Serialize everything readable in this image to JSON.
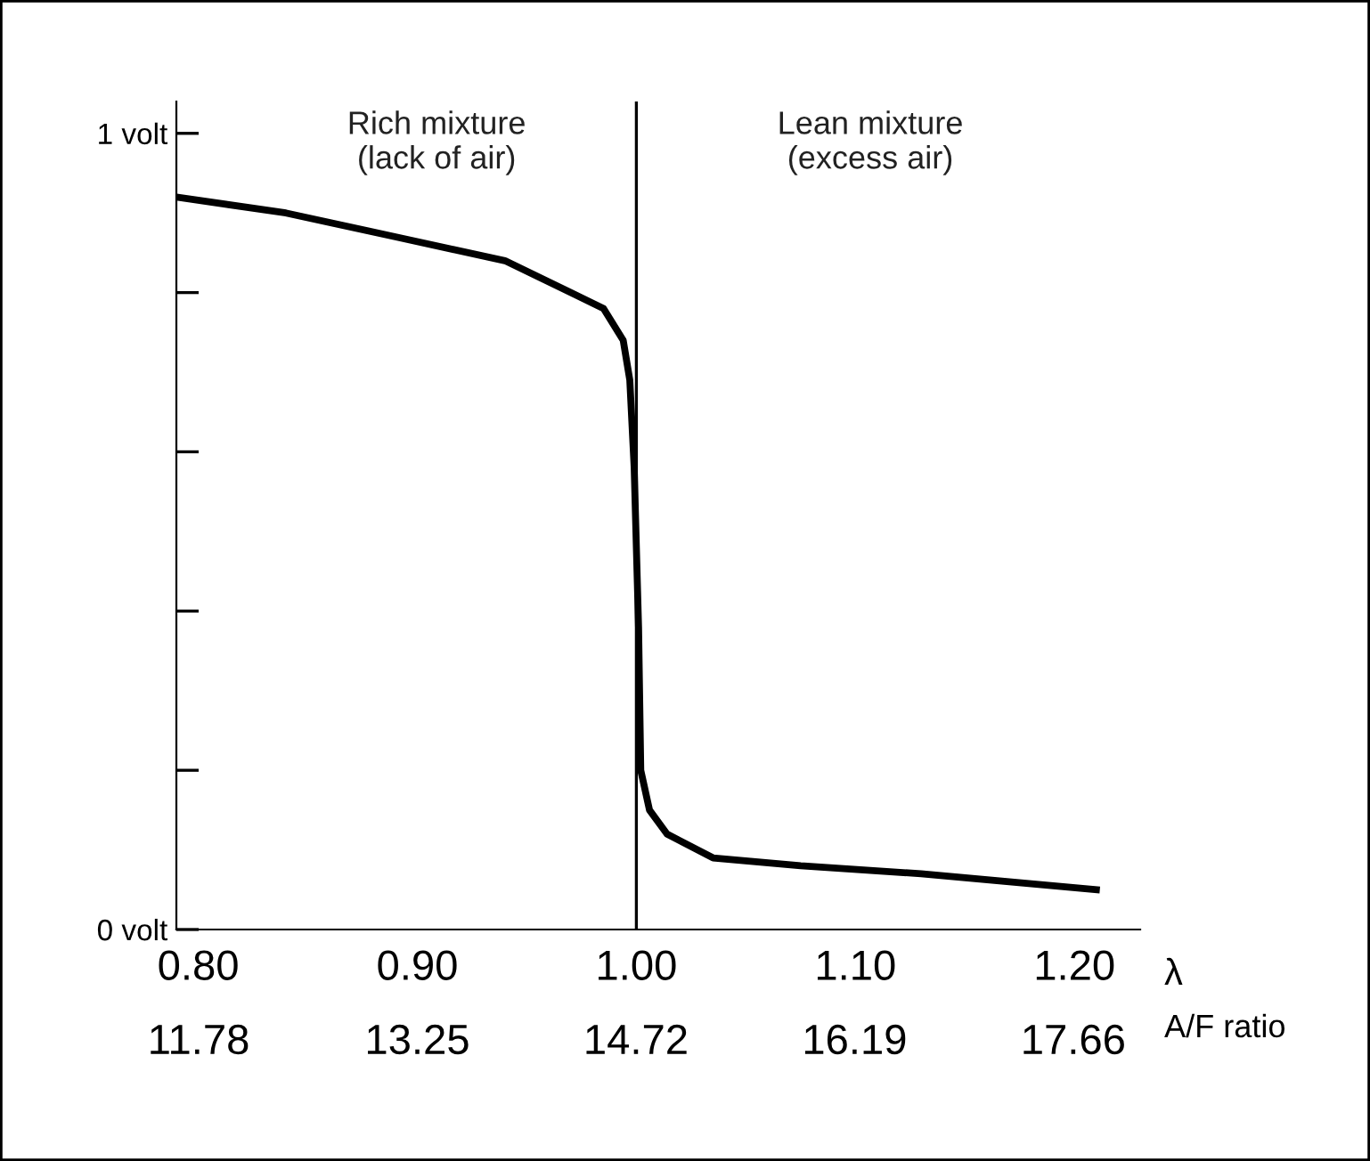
{
  "chart_data": {
    "type": "line",
    "xlabel": "λ",
    "x2label": "A/F ratio",
    "annotations": [
      "Rich mixture\n(lack of air)",
      "Lean mixture\n(excess air)"
    ],
    "series": [
      {
        "color": "#000000",
        "x": [
          0.79,
          0.84,
          0.89,
          0.94,
          0.97,
          0.985,
          0.994,
          0.997,
          0.999,
          1.001,
          1.002,
          1.006,
          1.014,
          1.035,
          1.075,
          1.13,
          1.21
        ],
        "values": [
          0.92,
          0.9,
          0.87,
          0.84,
          0.8,
          0.78,
          0.74,
          0.69,
          0.58,
          0.38,
          0.2,
          0.15,
          0.12,
          0.09,
          0.08,
          0.07,
          0.05
        ]
      }
    ],
    "xlim": [
      0.79,
      1.23
    ],
    "xticks": [
      {
        "value": 0.8,
        "label": "0.80"
      },
      {
        "value": 0.9,
        "label": "0.90"
      },
      {
        "value": 1.0,
        "label": "1.00"
      },
      {
        "value": 1.1,
        "label": "1.10"
      },
      {
        "value": 1.2,
        "label": "1.20"
      }
    ],
    "x2lim": [
      11.63,
      18.11
    ],
    "x2ticks": [
      11.78,
      13.25,
      14.72,
      16.19,
      17.66
    ],
    "ylim": [
      0,
      1.04
    ],
    "yticks": [
      {
        "value": 0,
        "label": "0 volt"
      },
      {
        "value": 0.2,
        "label": null
      },
      {
        "value": 0.4,
        "label": null
      },
      {
        "value": 0.6,
        "label": null
      },
      {
        "value": 0.8,
        "label": null
      },
      {
        "value": 1,
        "label": "1 volt"
      }
    ],
    "ref_lines": [
      {
        "axis": "x",
        "value": 1.0,
        "label": null,
        "color": "#000000"
      }
    ],
    "grid": false,
    "legend": false,
    "marker": "none",
    "line_style": "solid"
  }
}
